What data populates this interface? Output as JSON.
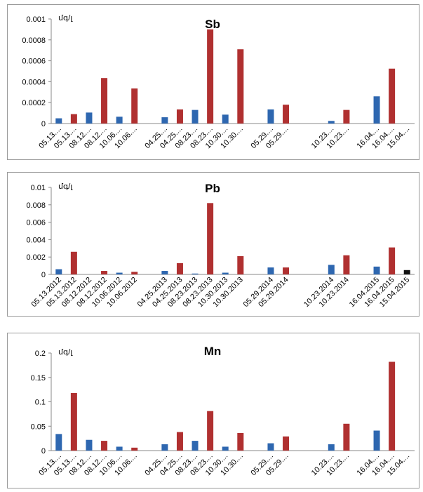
{
  "chart_data": [
    {
      "type": "bar",
      "title": "Sb",
      "unit": "մգ/լ",
      "ylim": [
        0,
        0.001
      ],
      "yticks": [
        "0",
        "0.0002",
        "0.0004",
        "0.0006",
        "0.0008",
        "0.001"
      ],
      "grid": false,
      "categories": [
        "05.13....",
        "05.13....",
        "08.12....",
        "08.12....",
        "10.06....",
        "10.06....",
        "",
        "04.25....",
        "04.25....",
        "08.23....",
        "08.23....",
        "10.30....",
        "10.30....",
        "",
        "05.29....",
        "05.29....",
        "",
        "",
        "10.23....",
        "10.23....",
        "",
        "16.04....",
        "16.04....",
        "15.04...."
      ],
      "values": [
        5e-05,
        9e-05,
        0.000105,
        0.000435,
        6.5e-05,
        0.000335,
        null,
        6e-05,
        0.000135,
        0.00013,
        0.0009,
        8.5e-05,
        0.00071,
        null,
        0.000135,
        0.00018,
        null,
        null,
        2.5e-05,
        0.00013,
        null,
        0.00026,
        0.000525,
        0
      ],
      "colors": [
        "#2e67b0",
        "#b03030",
        "#2e67b0",
        "#b03030",
        "#2e67b0",
        "#b03030",
        "",
        "#2e67b0",
        "#b03030",
        "#2e67b0",
        "#b03030",
        "#2e67b0",
        "#b03030",
        "",
        "#2e67b0",
        "#b03030",
        "",
        "",
        "#2e67b0",
        "#b03030",
        "",
        "#2e67b0",
        "#b03030",
        "#111111"
      ]
    },
    {
      "type": "bar",
      "title": "Pb",
      "unit": "մգ/լ",
      "ylim": [
        0,
        0.01
      ],
      "yticks": [
        "0",
        "0.002",
        "0.004",
        "0.006",
        "0.008",
        "0.01"
      ],
      "grid": false,
      "categories": [
        "05.13.2012",
        "05.13.2012",
        "08.12.2012",
        "08.12.2012",
        "10.06.2012",
        "10.06.2012",
        "",
        "04.25.2013",
        "04.25.2013",
        "08.23.2013",
        "08.23.2013",
        "10.30.2013",
        "10.30.2013",
        "",
        "05.29.2014",
        "05.29.2014",
        "",
        "",
        "10.23.2014",
        "10.23.2014",
        "",
        "16.04.2015",
        "16.04.2015",
        "15.04.2015"
      ],
      "values": [
        0.0006,
        0.0026,
        0,
        0.0004,
        0.0002,
        0.0003,
        null,
        0.0004,
        0.0013,
        0.0001,
        0.0082,
        0.0002,
        0.0021,
        null,
        0.0008,
        0.0008,
        null,
        null,
        0.0011,
        0.0022,
        null,
        0.0009,
        0.0031,
        0.0005
      ],
      "colors": [
        "#2e67b0",
        "#b03030",
        "#2e67b0",
        "#b03030",
        "#2e67b0",
        "#b03030",
        "",
        "#2e67b0",
        "#b03030",
        "#2e67b0",
        "#b03030",
        "#2e67b0",
        "#b03030",
        "",
        "#2e67b0",
        "#b03030",
        "",
        "",
        "#2e67b0",
        "#b03030",
        "",
        "#2e67b0",
        "#b03030",
        "#111111"
      ]
    },
    {
      "type": "bar",
      "title": "Mn",
      "unit": "մգ/լ",
      "ylim": [
        0,
        0.2
      ],
      "yticks": [
        "0",
        "0.05",
        "0.1",
        "0.15",
        "0.2"
      ],
      "grid": false,
      "categories": [
        "05.13....",
        "05.13....",
        "08.12....",
        "08.12....",
        "10.06....",
        "10.06....",
        "",
        "04.25....",
        "04.25....",
        "08.23....",
        "08.23....",
        "10.30....",
        "10.30....",
        "",
        "05.29....",
        "05.29....",
        "",
        "",
        "10.23....",
        "10.23....",
        "",
        "16.04....",
        "16.04....",
        "15.04...."
      ],
      "values": [
        0.034,
        0.118,
        0.022,
        0.02,
        0.008,
        0.006,
        null,
        0.013,
        0.038,
        0.02,
        0.081,
        0.008,
        0.036,
        null,
        0.015,
        0.029,
        null,
        null,
        0.013,
        0.055,
        null,
        0.041,
        0.182,
        0
      ],
      "colors": [
        "#2e67b0",
        "#b03030",
        "#2e67b0",
        "#b03030",
        "#2e67b0",
        "#b03030",
        "",
        "#2e67b0",
        "#b03030",
        "#2e67b0",
        "#b03030",
        "#2e67b0",
        "#b03030",
        "",
        "#2e67b0",
        "#b03030",
        "",
        "",
        "#2e67b0",
        "#b03030",
        "",
        "#2e67b0",
        "#b03030",
        "#111111"
      ]
    }
  ]
}
